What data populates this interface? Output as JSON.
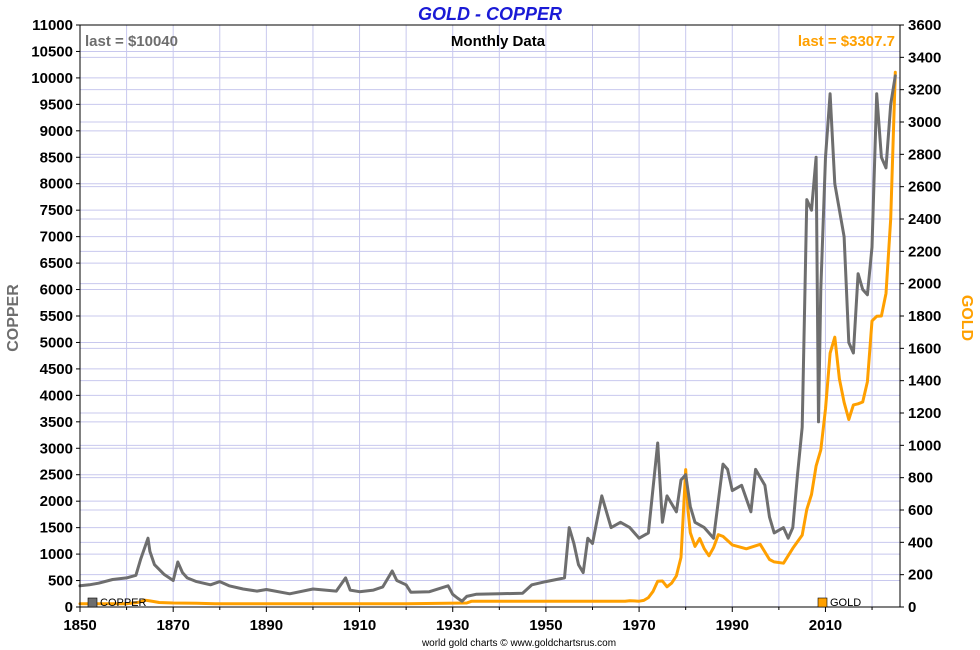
{
  "chart_data": {
    "type": "line",
    "title": "GOLD - COPPER",
    "subtitle": "Monthly Data",
    "left_axis_label": "COPPER",
    "right_axis_label": "GOLD",
    "left_last_label": "last = $10040",
    "right_last_label": "last = $3307.7",
    "credit": "world gold charts © www.goldchartsrus.com",
    "xlim": [
      1850,
      2026
    ],
    "x_ticks": [
      1850,
      1870,
      1890,
      1910,
      1930,
      1950,
      1970,
      1990,
      2010
    ],
    "x_tick_labels": [
      "1850",
      "1870",
      "1890",
      "1910",
      "1930",
      "1950",
      "1970",
      "1990",
      "2010"
    ],
    "x_minor_ticks": [
      1860,
      1880,
      1900,
      1920,
      1940,
      1960,
      1980,
      2000,
      2020
    ],
    "left_ylim": [
      0,
      11000
    ],
    "left_ticks": [
      0,
      500,
      1000,
      1500,
      2000,
      2500,
      3000,
      3500,
      4000,
      4500,
      5000,
      5500,
      6000,
      6500,
      7000,
      7500,
      8000,
      8500,
      9000,
      9500,
      10000,
      10500,
      11000
    ],
    "left_tick_labels": [
      "0",
      "500",
      "1000",
      "1500",
      "2000",
      "2500",
      "3000",
      "3500",
      "4000",
      "4500",
      "5000",
      "5500",
      "6000",
      "6500",
      "7000",
      "7500",
      "8000",
      "8500",
      "9000",
      "9500",
      "10000",
      "10500",
      "11000"
    ],
    "right_ylim": [
      0,
      3600
    ],
    "right_ticks": [
      0,
      200,
      400,
      600,
      800,
      1000,
      1200,
      1400,
      1600,
      1800,
      2000,
      2200,
      2400,
      2600,
      2800,
      3000,
      3200,
      3400,
      3600
    ],
    "right_tick_labels": [
      "0",
      "200",
      "400",
      "600",
      "800",
      "1000",
      "1200",
      "1400",
      "1600",
      "1800",
      "2000",
      "2200",
      "2400",
      "2600",
      "2800",
      "3000",
      "3200",
      "3400",
      "3600"
    ],
    "grid": true,
    "legend": [
      {
        "name": "COPPER",
        "placement": "bottom-left"
      },
      {
        "name": "GOLD",
        "placement": "bottom-right"
      }
    ],
    "series": [
      {
        "name": "COPPER",
        "axis": "left",
        "color": "#6e6e6e",
        "x": [
          1850,
          1852,
          1854,
          1857,
          1860,
          1862,
          1863,
          1864,
          1864.6,
          1865,
          1866,
          1868,
          1870,
          1871,
          1872,
          1873,
          1875,
          1878,
          1880,
          1882,
          1885,
          1888,
          1890,
          1895,
          1900,
          1905,
          1907,
          1908,
          1910,
          1913,
          1915,
          1917,
          1918,
          1920,
          1921,
          1925,
          1929,
          1930,
          1931,
          1932,
          1933,
          1935,
          1940,
          1945,
          1947,
          1950,
          1954,
          1955,
          1956,
          1957,
          1958,
          1959,
          1960,
          1962,
          1964,
          1966,
          1968,
          1970,
          1972,
          1974,
          1975,
          1976,
          1978,
          1979,
          1980,
          1981,
          1982,
          1984,
          1986,
          1988,
          1989,
          1990,
          1992,
          1994,
          1995,
          1997,
          1998,
          1999,
          2001,
          2002,
          2003,
          2004,
          2005,
          2006,
          2007,
          2008,
          2008.5,
          2009,
          2010,
          2011,
          2012,
          2014,
          2015,
          2016,
          2017,
          2018,
          2019,
          2020,
          2021,
          2022,
          2023,
          2024,
          2025
        ],
        "values": [
          400,
          420,
          450,
          520,
          550,
          600,
          900,
          1150,
          1300,
          1050,
          800,
          620,
          500,
          850,
          650,
          550,
          480,
          420,
          480,
          400,
          340,
          300,
          330,
          250,
          340,
          300,
          550,
          320,
          290,
          320,
          380,
          680,
          500,
          420,
          280,
          290,
          400,
          240,
          170,
          110,
          200,
          240,
          250,
          260,
          420,
          480,
          550,
          1500,
          1200,
          800,
          650,
          1300,
          1200,
          2100,
          1500,
          1600,
          1500,
          1300,
          1400,
          3100,
          1600,
          2100,
          1800,
          2400,
          2500,
          1900,
          1600,
          1500,
          1300,
          2700,
          2600,
          2200,
          2300,
          1800,
          2600,
          2300,
          1700,
          1400,
          1500,
          1300,
          1500,
          2500,
          3400,
          7700,
          7500,
          8500,
          3500,
          6000,
          8500,
          9700,
          8000,
          7000,
          5000,
          4800,
          6300,
          6000,
          5900,
          6800,
          9700,
          8500,
          8300,
          9500,
          10040
        ]
      },
      {
        "name": "GOLD",
        "axis": "right",
        "color": "#ffa000",
        "x": [
          1850,
          1860,
          1862,
          1863,
          1864,
          1865,
          1867,
          1870,
          1875,
          1879,
          1900,
          1920,
          1933,
          1934,
          1935,
          1950,
          1960,
          1967,
          1968,
          1970,
          1971,
          1972,
          1973,
          1974,
          1975,
          1976,
          1977,
          1978,
          1979,
          1980,
          1980.5,
          1981,
          1982,
          1983,
          1984,
          1985,
          1986,
          1987,
          1988,
          1990,
          1993,
          1996,
          1998,
          1999,
          2001,
          2003,
          2005,
          2006,
          2007,
          2008,
          2009,
          2010,
          2011,
          2012,
          2013,
          2014,
          2015,
          2016,
          2017,
          2018,
          2019,
          2020,
          2021,
          2022,
          2023,
          2024,
          2025
        ],
        "values": [
          20.7,
          20.7,
          26,
          32,
          42,
          38,
          28,
          25,
          23,
          20.7,
          20.7,
          20.7,
          25,
          35,
          35,
          35,
          35,
          35,
          39,
          36,
          41,
          58,
          97,
          159,
          161,
          125,
          148,
          193,
          307,
          850,
          600,
          460,
          375,
          424,
          360,
          317,
          368,
          447,
          437,
          384,
          360,
          388,
          294,
          279,
          271,
          363,
          445,
          604,
          696,
          872,
          972,
          1225,
          1570,
          1669,
          1411,
          1266,
          1160,
          1250,
          1257,
          1268,
          1393,
          1770,
          1798,
          1800,
          1940,
          2400,
          3307.7
        ]
      }
    ]
  }
}
